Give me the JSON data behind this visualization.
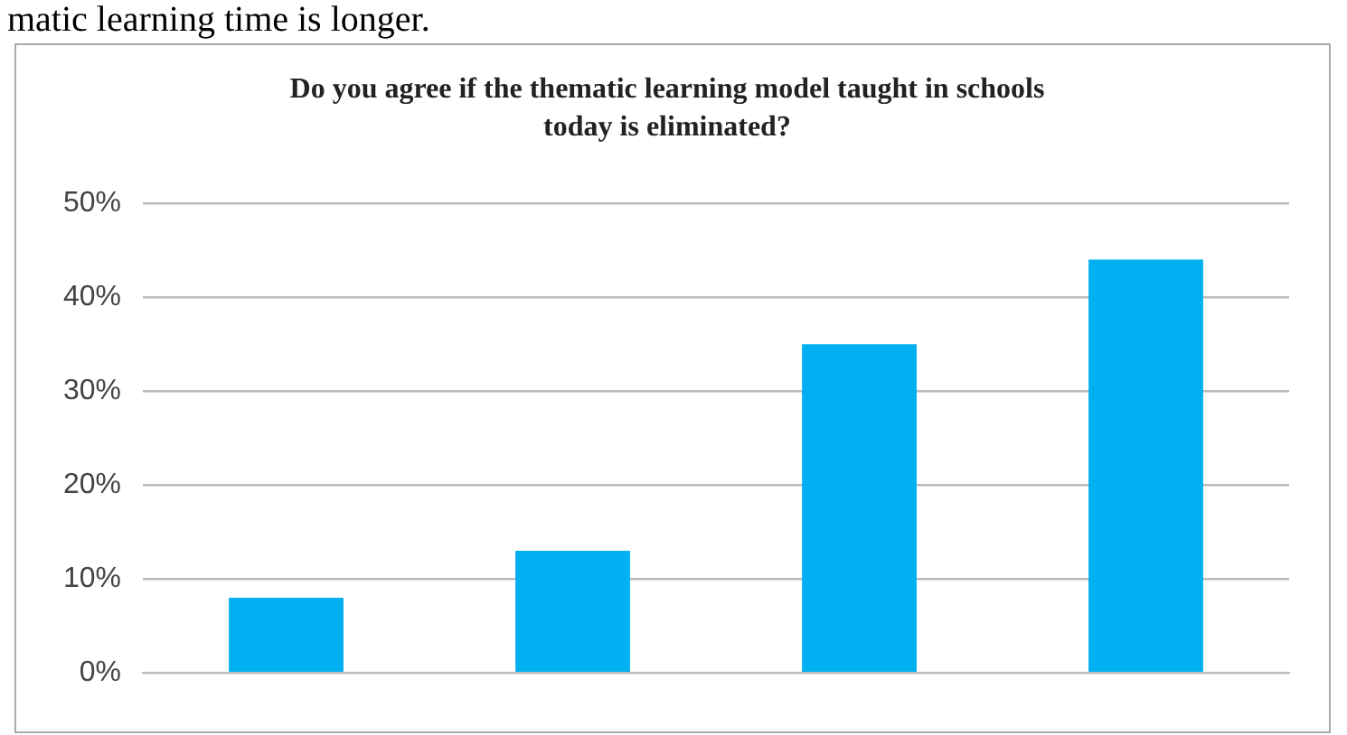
{
  "chart_data": {
    "type": "bar",
    "title": "Do you agree if the thematic learning model taught in schools today is eliminated?",
    "annotations": [
      "matic learning time is longer."
    ],
    "categories": [
      null,
      null,
      null,
      null
    ],
    "values": [
      8,
      13,
      35,
      44
    ],
    "color": "#00b0f0",
    "ylim": [
      0,
      50
    ],
    "yticks": [
      {
        "value": 0,
        "label": "0%"
      },
      {
        "value": 10,
        "label": "10%"
      },
      {
        "value": 20,
        "label": "20%"
      },
      {
        "value": 30,
        "label": "30%"
      },
      {
        "value": 40,
        "label": "40%"
      },
      {
        "value": 50,
        "label": "50%"
      }
    ],
    "grid": "y",
    "legend": false
  }
}
